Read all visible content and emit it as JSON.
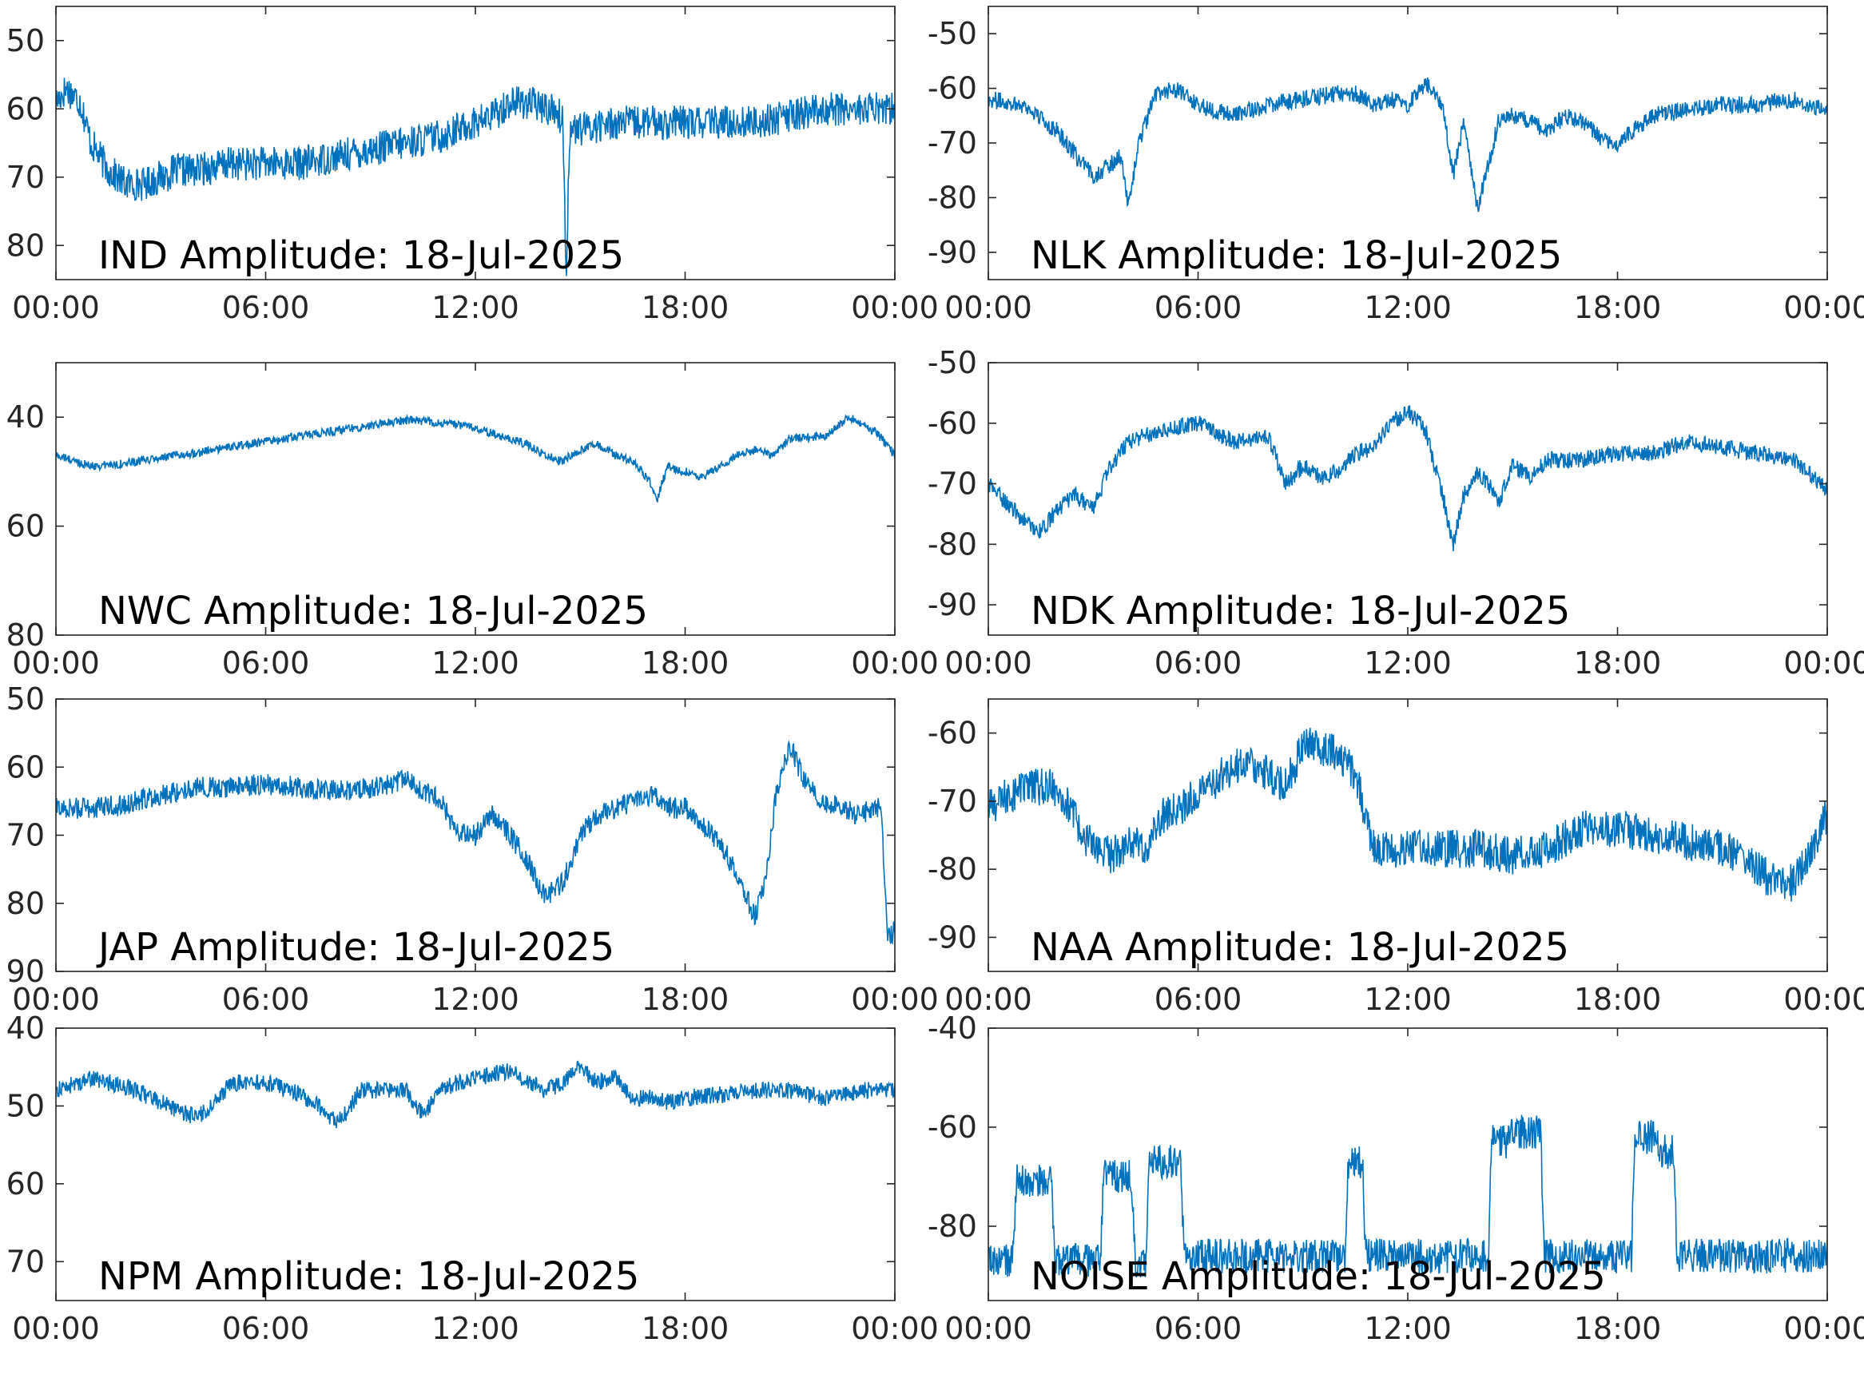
{
  "chart_data": [
    {
      "type": "line",
      "title": "IND Amplitude: 18-Jul-2025",
      "xticks": [
        "00:00",
        "06:00",
        "12:00",
        "18:00",
        "00:00"
      ],
      "xlim": [
        0,
        24
      ],
      "ylim": [
        -85,
        -45
      ],
      "yticks": [
        -50,
        -60,
        -70,
        -80
      ],
      "ytick_labels": [
        "50",
        "60",
        "70",
        "80"
      ],
      "color": "#0072BD",
      "series": [
        {
          "x": [
            0,
            0.3,
            0.7,
            1.0,
            1.5,
            2.0,
            2.5,
            3.0,
            3.5,
            4.0,
            5.0,
            6.0,
            7.0,
            8.0,
            9.0,
            10.0,
            11.0,
            12.0,
            12.5,
            13.0,
            13.5,
            14.0,
            14.3,
            14.5,
            14.6,
            14.7,
            15.0,
            16.0,
            17.0,
            18.0,
            19.0,
            20.0,
            21.0,
            22.0,
            23.0,
            24.0
          ],
          "y": [
            -59,
            -57,
            -59,
            -65,
            -69,
            -71,
            -71,
            -70,
            -69,
            -69,
            -68,
            -68,
            -68,
            -67,
            -66,
            -65,
            -64,
            -62,
            -61,
            -59,
            -59,
            -60,
            -60,
            -62,
            -84,
            -63,
            -63,
            -62,
            -62,
            -62,
            -62,
            -62,
            -61,
            -60,
            -60,
            -60
          ],
          "noise": 2.5
        }
      ]
    },
    {
      "type": "line",
      "title": "NLK Amplitude: 18-Jul-2025",
      "xticks": [
        "00:00",
        "06:00",
        "12:00",
        "18:00",
        "00:00"
      ],
      "xlim": [
        0,
        24
      ],
      "ylim": [
        -95,
        -45
      ],
      "yticks": [
        -50,
        -60,
        -70,
        -80,
        -90
      ],
      "ytick_labels": [
        "-50",
        "-60",
        "-70",
        "-80",
        "-90"
      ],
      "color": "#0072BD",
      "series": [
        {
          "x": [
            0,
            1,
            2,
            2.7,
            3.0,
            3.5,
            3.8,
            4.0,
            4.3,
            4.8,
            5.3,
            6.0,
            6.5,
            7.0,
            8.0,
            9.0,
            10.0,
            10.5,
            11.0,
            11.5,
            12.0,
            12.5,
            13.0,
            13.3,
            13.6,
            14.0,
            14.3,
            14.6,
            15.0,
            15.5,
            16.0,
            16.5,
            17.0,
            17.5,
            18.0,
            19.0,
            20.0,
            21.0,
            22.0,
            23.0,
            24.0
          ],
          "y": [
            -62,
            -63,
            -68,
            -74,
            -76,
            -74,
            -72,
            -82,
            -70,
            -61,
            -60,
            -63,
            -64,
            -65,
            -63,
            -62,
            -61,
            -61,
            -63,
            -62,
            -63,
            -59,
            -63,
            -76,
            -66,
            -82,
            -74,
            -66,
            -65,
            -66,
            -68,
            -65,
            -66,
            -69,
            -70,
            -65,
            -64,
            -63,
            -63,
            -62,
            -64
          ],
          "noise": 1.6
        }
      ]
    },
    {
      "type": "line",
      "title": "NWC Amplitude: 18-Jul-2025",
      "xticks": [
        "00:00",
        "06:00",
        "12:00",
        "18:00",
        "00:00"
      ],
      "xlim": [
        0,
        24
      ],
      "ylim": [
        -80,
        -30
      ],
      "yticks": [
        -40,
        -60,
        -80
      ],
      "ytick_labels": [
        "40",
        "60",
        "80"
      ],
      "color": "#0072BD",
      "series": [
        {
          "x": [
            0,
            1,
            2,
            3,
            4,
            5,
            6,
            7,
            8,
            9,
            10,
            11,
            12,
            13,
            13.5,
            14,
            14.5,
            15,
            15.5,
            16,
            16.5,
            17,
            17.2,
            17.5,
            18,
            18.5,
            19,
            19.5,
            20,
            20.5,
            21,
            22,
            22.3,
            22.7,
            23,
            23.5,
            24
          ],
          "y": [
            -47,
            -49,
            -48.5,
            -47.5,
            -46.5,
            -45.5,
            -44.5,
            -43.5,
            -42.5,
            -41.5,
            -40.5,
            -41,
            -42,
            -44,
            -45,
            -47,
            -48,
            -46,
            -45,
            -47,
            -48,
            -52,
            -55,
            -49,
            -50,
            -51,
            -49,
            -47,
            -46,
            -47,
            -44,
            -43.5,
            -42,
            -40,
            -41,
            -43,
            -47
          ],
          "noise": 0.8
        }
      ]
    },
    {
      "type": "line",
      "title": "NDK Amplitude: 18-Jul-2025",
      "xticks": [
        "00:00",
        "06:00",
        "12:00",
        "18:00",
        "00:00"
      ],
      "xlim": [
        0,
        24
      ],
      "ylim": [
        -95,
        -50
      ],
      "yticks": [
        -50,
        -60,
        -70,
        -80,
        -90
      ],
      "ytick_labels": [
        "-50",
        "-60",
        "-70",
        "-80",
        "-90"
      ],
      "color": "#0072BD",
      "series": [
        {
          "x": [
            0,
            0.5,
            1,
            1.5,
            2,
            2.5,
            3,
            3.5,
            4,
            5,
            6,
            7,
            8,
            8.5,
            9,
            9.5,
            10,
            10.5,
            11,
            11.5,
            12,
            12.5,
            13,
            13.3,
            13.6,
            14,
            14.3,
            14.6,
            15,
            15.5,
            16,
            17,
            18,
            19,
            20,
            21,
            22,
            23,
            24
          ],
          "y": [
            -70,
            -73,
            -76,
            -78,
            -74,
            -72,
            -74,
            -67,
            -63,
            -61,
            -60,
            -63,
            -62,
            -70,
            -67,
            -69,
            -68,
            -65,
            -64,
            -60,
            -58,
            -61,
            -72,
            -80,
            -72,
            -68,
            -70,
            -73,
            -67,
            -69,
            -66,
            -66,
            -65,
            -65,
            -63,
            -64,
            -65,
            -66,
            -71
          ],
          "noise": 1.4
        }
      ]
    },
    {
      "type": "line",
      "title": "JAP Amplitude: 18-Jul-2025",
      "xticks": [
        "00:00",
        "06:00",
        "12:00",
        "18:00",
        "00:00"
      ],
      "xlim": [
        0,
        24
      ],
      "ylim": [
        -90,
        -50
      ],
      "yticks": [
        -50,
        -60,
        -70,
        -80,
        -90
      ],
      "ytick_labels": [
        "50",
        "60",
        "70",
        "80",
        "90"
      ],
      "color": "#0072BD",
      "series": [
        {
          "x": [
            0,
            1,
            2,
            3,
            4,
            5,
            6,
            7,
            8,
            9,
            10,
            11,
            11.5,
            12,
            12.5,
            13,
            13.5,
            14,
            14.5,
            15,
            15.5,
            16,
            16.5,
            17,
            17.5,
            18,
            19,
            19.5,
            20,
            20.3,
            20.6,
            21,
            21.5,
            22,
            22.5,
            23,
            23.4,
            23.6,
            23.8,
            24
          ],
          "y": [
            -66,
            -66,
            -65.5,
            -64,
            -63,
            -63,
            -62.5,
            -63,
            -63.5,
            -63,
            -62,
            -65,
            -70,
            -70,
            -67,
            -70,
            -74,
            -79,
            -77,
            -70,
            -67,
            -66,
            -65,
            -64,
            -66,
            -66,
            -71,
            -76,
            -82,
            -77,
            -64,
            -57,
            -63,
            -65,
            -66,
            -67,
            -66,
            -66,
            -85,
            -84
          ],
          "noise": 1.6
        }
      ]
    },
    {
      "type": "line",
      "title": "NAA Amplitude: 18-Jul-2025",
      "xticks": [
        "00:00",
        "06:00",
        "12:00",
        "18:00",
        "00:00"
      ],
      "xlim": [
        0,
        24
      ],
      "ylim": [
        -95,
        -55
      ],
      "yticks": [
        -60,
        -70,
        -80,
        -90
      ],
      "ytick_labels": [
        "-60",
        "-70",
        "-80",
        "-90"
      ],
      "color": "#0072BD",
      "series": [
        {
          "x": [
            0,
            1,
            2,
            2.5,
            3,
            3.5,
            4,
            4.5,
            5,
            5.5,
            6,
            6.5,
            7,
            7.5,
            8,
            8.5,
            9,
            9.5,
            10,
            10.5,
            11,
            12,
            13,
            14,
            15,
            16,
            17,
            18,
            19,
            20,
            21,
            22,
            22.5,
            23,
            23.5,
            24
          ],
          "y": [
            -71,
            -68,
            -68,
            -73,
            -77,
            -78,
            -76,
            -77,
            -72,
            -71,
            -69,
            -67,
            -65,
            -64,
            -66,
            -68,
            -62,
            -62,
            -63,
            -66,
            -77,
            -77,
            -77,
            -77,
            -78,
            -77,
            -74,
            -74,
            -75,
            -76,
            -77,
            -80,
            -82,
            -82,
            -78,
            -72
          ],
          "noise": 2.8
        }
      ]
    },
    {
      "type": "line",
      "title": "NPM Amplitude: 18-Jul-2025",
      "xticks": [
        "00:00",
        "06:00",
        "12:00",
        "18:00",
        "00:00"
      ],
      "xlim": [
        0,
        24
      ],
      "ylim": [
        -75,
        -40
      ],
      "yticks": [
        -40,
        -50,
        -60,
        -70
      ],
      "ytick_labels": [
        "40",
        "50",
        "60",
        "70"
      ],
      "color": "#0072BD",
      "series": [
        {
          "x": [
            0,
            1,
            2,
            3,
            4,
            4.5,
            5,
            6,
            7,
            7.5,
            8,
            8.3,
            8.7,
            9,
            10,
            10.5,
            11,
            11.5,
            12,
            12.5,
            13,
            13.5,
            14,
            14.5,
            15,
            15.5,
            16,
            16.5,
            17,
            17.5,
            18,
            19,
            20,
            21,
            22,
            23,
            24
          ],
          "y": [
            -48,
            -46.5,
            -47.5,
            -49.5,
            -51.5,
            -50,
            -47,
            -47,
            -48.5,
            -50,
            -52,
            -51,
            -48,
            -48,
            -48,
            -51,
            -48,
            -47,
            -46.5,
            -46,
            -45.5,
            -47,
            -48,
            -47,
            -45,
            -47,
            -46,
            -49,
            -49,
            -49.5,
            -49,
            -48.5,
            -48,
            -48,
            -49,
            -48,
            -48
          ],
          "noise": 1.1
        }
      ]
    },
    {
      "type": "line",
      "title": "NOISE Amplitude: 18-Jul-2025",
      "xticks": [
        "00:00",
        "06:00",
        "12:00",
        "18:00",
        "00:00"
      ],
      "xlim": [
        0,
        24
      ],
      "ylim": [
        -95,
        -40
      ],
      "yticks": [
        -40,
        -60,
        -80
      ],
      "ytick_labels": [
        "-40",
        "-60",
        "-80"
      ],
      "color": "#0072BD",
      "series": [
        {
          "x": [
            0,
            0.7,
            0.8,
            1.8,
            1.9,
            3.2,
            3.3,
            4.1,
            4.2,
            4.5,
            4.6,
            5.5,
            5.6,
            10.2,
            10.3,
            10.7,
            10.8,
            14.3,
            14.4,
            14.9,
            15.0,
            15.8,
            15.9,
            18.4,
            18.5,
            19.1,
            19.2,
            19.6,
            19.7,
            24
          ],
          "y": [
            -87,
            -87,
            -71,
            -71,
            -87,
            -87,
            -70,
            -70,
            -87,
            -87,
            -67,
            -67,
            -86,
            -86,
            -67,
            -67,
            -86,
            -86,
            -63,
            -63,
            -61,
            -61,
            -86,
            -86,
            -62,
            -62,
            -65,
            -65,
            -86,
            -86
          ],
          "noise": 3.5
        }
      ]
    }
  ]
}
